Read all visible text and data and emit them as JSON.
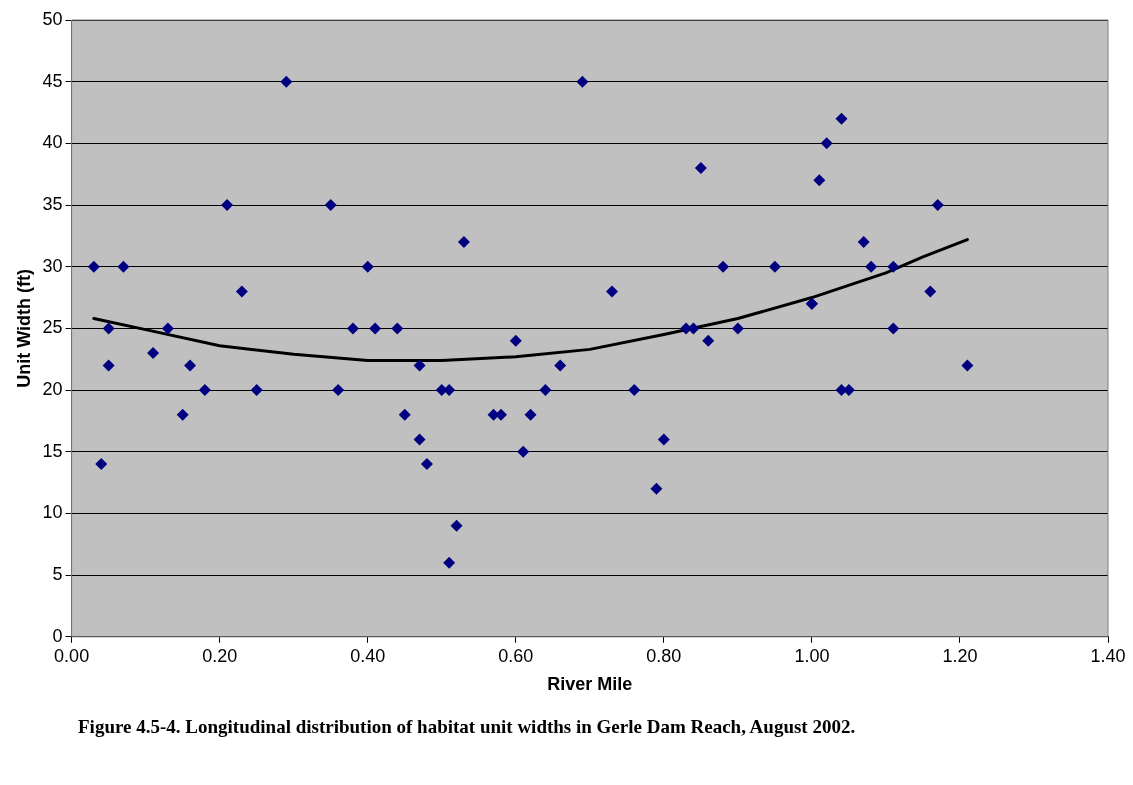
{
  "chart_data": {
    "type": "scatter",
    "xlabel": "River Mile",
    "ylabel": "Unit Width (ft)",
    "xlim": [
      0,
      1.4
    ],
    "xticks": [
      {
        "value": 0,
        "label": "0.00"
      },
      {
        "value": 0.2,
        "label": "0.20"
      },
      {
        "value": 0.4,
        "label": "0.40"
      },
      {
        "value": 0.6,
        "label": "0.60"
      },
      {
        "value": 0.8,
        "label": "0.80"
      },
      {
        "value": 1,
        "label": "1.00"
      },
      {
        "value": 1.2,
        "label": "1.20"
      },
      {
        "value": 1.4,
        "label": "1.40"
      }
    ],
    "ylim": [
      0,
      50
    ],
    "yticks": [
      0,
      5,
      10,
      15,
      20,
      25,
      30,
      35,
      40,
      45,
      50
    ],
    "grid": "y",
    "legend": false,
    "series": [
      {
        "marker": "diamond",
        "color": "#000080",
        "x": [
          0.03,
          0.04,
          0.05,
          0.05,
          0.07,
          0.11,
          0.13,
          0.15,
          0.16,
          0.18,
          0.21,
          0.23,
          0.25,
          0.29,
          0.35,
          0.36,
          0.38,
          0.4,
          0.41,
          0.44,
          0.45,
          0.47,
          0.47,
          0.48,
          0.5,
          0.51,
          0.51,
          0.52,
          0.53,
          0.57,
          0.58,
          0.6,
          0.61,
          0.62,
          0.64,
          0.66,
          0.69,
          0.73,
          0.76,
          0.79,
          0.8,
          0.83,
          0.84,
          0.85,
          0.86,
          0.88,
          0.9,
          0.95,
          1.0,
          1.0,
          1.01,
          1.02,
          1.04,
          1.04,
          1.05,
          1.07,
          1.08,
          1.11,
          1.11,
          1.16,
          1.17,
          1.21
        ],
        "values": [
          30,
          14,
          22,
          25,
          30,
          23,
          25,
          18,
          22,
          20,
          35,
          28,
          20,
          45,
          35,
          20,
          25,
          30,
          25,
          25,
          18,
          22,
          16,
          14,
          20,
          6,
          20,
          9,
          32,
          18,
          18,
          24,
          15,
          18,
          20,
          22,
          45,
          28,
          20,
          12,
          16,
          25,
          25,
          38,
          24,
          30,
          25,
          30,
          27,
          27,
          37,
          40,
          42,
          20,
          20,
          32,
          30,
          25,
          30,
          28,
          35,
          22
        ]
      },
      {
        "type": "line",
        "marker": "none",
        "color": "#000000",
        "x": [
          0.03,
          0.1,
          0.2,
          0.3,
          0.4,
          0.5,
          0.6,
          0.7,
          0.8,
          0.9,
          1.0,
          1.1,
          1.15,
          1.21
        ],
        "values": [
          25.8,
          24.9,
          23.6,
          22.9,
          22.4,
          22.4,
          22.7,
          23.3,
          24.5,
          25.8,
          27.5,
          29.5,
          30.8,
          32.2
        ]
      }
    ],
    "annotations": [
      "Figure 4.5-4. Longitudinal distribution of habitat unit widths in Gerle Dam Reach, August 2002."
    ]
  }
}
